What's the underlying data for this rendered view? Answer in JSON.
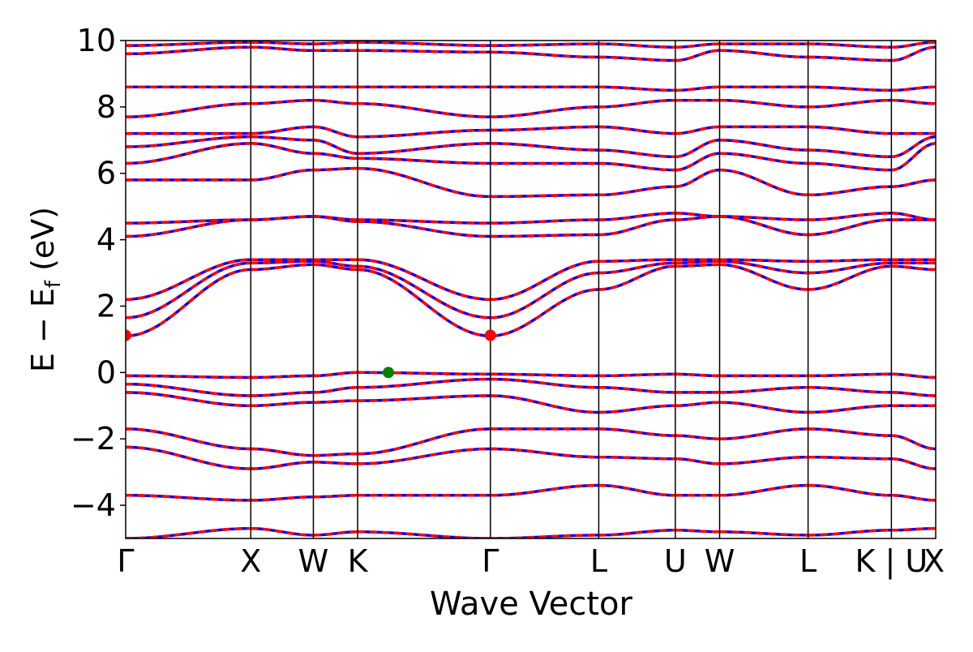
{
  "chart_data": {
    "type": "line",
    "xlabel": "Wave Vector",
    "ylabel": "E − E",
    "ylabel_subscript": "f",
    "ylabel_unit": " (eV)",
    "ylim": [
      -5,
      10
    ],
    "yticks": [
      -4,
      -2,
      0,
      2,
      4,
      6,
      8,
      10
    ],
    "ytick_labels": [
      "−4",
      "−2",
      "0",
      "2",
      "4",
      "6",
      "8",
      "10"
    ],
    "grid": false,
    "legend": "none",
    "kpath": [
      {
        "label": "Γ",
        "x": 0.0
      },
      {
        "label": "X",
        "x": 1.0
      },
      {
        "label": "W",
        "x": 1.5
      },
      {
        "label": "K",
        "x": 1.854
      },
      {
        "label": "Γ",
        "x": 2.915
      },
      {
        "label": "L",
        "x": 3.781
      },
      {
        "label": "U",
        "x": 4.393
      },
      {
        "label": "W",
        "x": 4.747
      },
      {
        "label": "L",
        "x": 5.454
      },
      {
        "label": "K | U",
        "x": 6.12
      },
      {
        "label": "X",
        "x": 6.474
      }
    ],
    "series_colors": {
      "spin_up": "#ff0000",
      "spin_down": "#0000ff"
    },
    "band_line_note": "red and blue bands overlap (dashed)",
    "segments": [
      {
        "x0": 0.0,
        "x1": 1.0,
        "bands": [
          [
            -5.0,
            -4.7
          ],
          [
            -3.7,
            -3.85
          ],
          [
            -2.25,
            -2.9
          ],
          [
            -1.7,
            -2.3
          ],
          [
            -0.6,
            -1.0
          ],
          [
            -0.35,
            -0.7
          ],
          [
            -0.1,
            -0.15
          ],
          [
            1.1,
            3.1
          ],
          [
            1.65,
            3.3
          ],
          [
            2.2,
            3.4
          ],
          [
            4.1,
            4.6
          ],
          [
            4.5,
            4.6
          ],
          [
            5.8,
            5.8
          ],
          [
            6.3,
            6.9
          ],
          [
            6.8,
            7.1
          ],
          [
            7.2,
            7.2
          ],
          [
            7.7,
            8.1
          ],
          [
            8.6,
            8.6
          ],
          [
            9.6,
            9.8
          ],
          [
            9.85,
            9.95
          ]
        ]
      },
      {
        "x0": 1.0,
        "x1": 1.5,
        "bands": [
          [
            -4.7,
            -4.9
          ],
          [
            -3.85,
            -3.75
          ],
          [
            -2.9,
            -2.7
          ],
          [
            -2.3,
            -2.5
          ],
          [
            -1.0,
            -0.9
          ],
          [
            -0.7,
            -0.6
          ],
          [
            -0.15,
            -0.1
          ],
          [
            3.1,
            3.25
          ],
          [
            3.3,
            3.35
          ],
          [
            3.4,
            3.4
          ],
          [
            4.6,
            4.7
          ],
          [
            4.6,
            4.7
          ],
          [
            5.8,
            6.1
          ],
          [
            6.9,
            6.6
          ],
          [
            7.1,
            7.0
          ],
          [
            7.2,
            7.4
          ],
          [
            8.1,
            8.2
          ],
          [
            8.6,
            8.6
          ],
          [
            9.8,
            9.7
          ],
          [
            9.95,
            9.9
          ]
        ]
      },
      {
        "x0": 1.5,
        "x1": 1.854,
        "bands": [
          [
            -4.9,
            -4.8
          ],
          [
            -3.75,
            -3.7
          ],
          [
            -2.7,
            -2.75
          ],
          [
            -2.5,
            -2.45
          ],
          [
            -0.9,
            -0.85
          ],
          [
            -0.6,
            -0.45
          ],
          [
            -0.1,
            0.0
          ],
          [
            3.25,
            3.1
          ],
          [
            3.35,
            3.2
          ],
          [
            3.4,
            3.4
          ],
          [
            4.7,
            4.55
          ],
          [
            4.7,
            4.6
          ],
          [
            6.1,
            6.15
          ],
          [
            6.6,
            6.45
          ],
          [
            7.0,
            6.6
          ],
          [
            7.4,
            7.1
          ],
          [
            8.2,
            8.1
          ],
          [
            8.6,
            8.6
          ],
          [
            9.7,
            9.7
          ],
          [
            9.9,
            9.95
          ]
        ]
      },
      {
        "x0": 1.854,
        "x1": 2.915,
        "bands": [
          [
            -4.8,
            -5.0
          ],
          [
            -3.7,
            -3.7
          ],
          [
            -2.75,
            -2.3
          ],
          [
            -2.45,
            -1.7
          ],
          [
            -0.85,
            -0.7
          ],
          [
            -0.45,
            -0.2
          ],
          [
            0.0,
            -0.05
          ],
          [
            3.1,
            1.1
          ],
          [
            3.2,
            1.65
          ],
          [
            3.4,
            2.2
          ],
          [
            4.55,
            4.1
          ],
          [
            4.6,
            4.5
          ],
          [
            6.15,
            5.3
          ],
          [
            6.45,
            6.3
          ],
          [
            6.6,
            6.9
          ],
          [
            7.1,
            7.3
          ],
          [
            8.1,
            7.7
          ],
          [
            8.6,
            8.6
          ],
          [
            9.7,
            9.65
          ],
          [
            9.95,
            9.85
          ]
        ]
      },
      {
        "x0": 2.915,
        "x1": 3.781,
        "bands": [
          [
            -5.0,
            -4.9
          ],
          [
            -3.7,
            -3.4
          ],
          [
            -2.3,
            -2.55
          ],
          [
            -1.7,
            -1.7
          ],
          [
            -0.7,
            -1.2
          ],
          [
            -0.2,
            -0.45
          ],
          [
            -0.05,
            -0.1
          ],
          [
            1.1,
            2.5
          ],
          [
            1.65,
            3.0
          ],
          [
            2.2,
            3.35
          ],
          [
            4.1,
            4.15
          ],
          [
            4.5,
            4.6
          ],
          [
            5.3,
            5.35
          ],
          [
            6.3,
            6.3
          ],
          [
            6.9,
            6.7
          ],
          [
            7.3,
            7.4
          ],
          [
            7.7,
            8.0
          ],
          [
            8.6,
            8.6
          ],
          [
            9.65,
            9.5
          ],
          [
            9.85,
            9.9
          ]
        ]
      },
      {
        "x0": 3.781,
        "x1": 4.393,
        "bands": [
          [
            -4.9,
            -4.75
          ],
          [
            -3.4,
            -3.7
          ],
          [
            -2.55,
            -2.6
          ],
          [
            -1.7,
            -1.9
          ],
          [
            -1.2,
            -1.0
          ],
          [
            -0.45,
            -0.6
          ],
          [
            -0.1,
            -0.05
          ],
          [
            2.5,
            3.2
          ],
          [
            3.0,
            3.3
          ],
          [
            3.35,
            3.4
          ],
          [
            4.15,
            4.6
          ],
          [
            4.6,
            4.8
          ],
          [
            5.35,
            5.6
          ],
          [
            6.3,
            6.1
          ],
          [
            6.7,
            6.5
          ],
          [
            7.4,
            7.2
          ],
          [
            8.0,
            8.2
          ],
          [
            8.6,
            8.5
          ],
          [
            9.5,
            9.4
          ],
          [
            9.9,
            9.8
          ]
        ]
      },
      {
        "x0": 4.393,
        "x1": 4.747,
        "bands": [
          [
            -4.75,
            -4.8
          ],
          [
            -3.7,
            -3.7
          ],
          [
            -2.6,
            -2.75
          ],
          [
            -1.9,
            -2.0
          ],
          [
            -1.0,
            -0.9
          ],
          [
            -0.6,
            -0.6
          ],
          [
            -0.05,
            -0.1
          ],
          [
            3.2,
            3.25
          ],
          [
            3.3,
            3.35
          ],
          [
            3.4,
            3.4
          ],
          [
            4.6,
            4.7
          ],
          [
            4.8,
            4.7
          ],
          [
            5.6,
            6.1
          ],
          [
            6.1,
            6.6
          ],
          [
            6.5,
            7.0
          ],
          [
            7.2,
            7.4
          ],
          [
            8.2,
            8.2
          ],
          [
            8.5,
            8.6
          ],
          [
            9.4,
            9.7
          ],
          [
            9.8,
            9.9
          ]
        ]
      },
      {
        "x0": 4.747,
        "x1": 5.454,
        "bands": [
          [
            -4.8,
            -4.9
          ],
          [
            -3.7,
            -3.4
          ],
          [
            -2.75,
            -2.55
          ],
          [
            -2.0,
            -1.7
          ],
          [
            -0.9,
            -1.2
          ],
          [
            -0.6,
            -0.45
          ],
          [
            -0.1,
            -0.1
          ],
          [
            3.25,
            2.5
          ],
          [
            3.35,
            3.0
          ],
          [
            3.4,
            3.35
          ],
          [
            4.7,
            4.15
          ],
          [
            4.7,
            4.6
          ],
          [
            6.1,
            5.35
          ],
          [
            6.6,
            6.3
          ],
          [
            7.0,
            6.7
          ],
          [
            7.4,
            7.4
          ],
          [
            8.2,
            8.0
          ],
          [
            8.6,
            8.6
          ],
          [
            9.7,
            9.5
          ],
          [
            9.9,
            9.9
          ]
        ]
      },
      {
        "x0": 5.454,
        "x1": 6.12,
        "bands": [
          [
            -4.9,
            -4.75
          ],
          [
            -3.4,
            -3.7
          ],
          [
            -2.55,
            -2.6
          ],
          [
            -1.7,
            -1.9
          ],
          [
            -1.2,
            -1.0
          ],
          [
            -0.45,
            -0.6
          ],
          [
            -0.1,
            -0.05
          ],
          [
            2.5,
            3.2
          ],
          [
            3.0,
            3.3
          ],
          [
            3.35,
            3.4
          ],
          [
            4.15,
            4.6
          ],
          [
            4.6,
            4.8
          ],
          [
            5.35,
            5.6
          ],
          [
            6.3,
            6.1
          ],
          [
            6.7,
            6.5
          ],
          [
            7.4,
            7.2
          ],
          [
            8.0,
            8.2
          ],
          [
            8.6,
            8.5
          ],
          [
            9.5,
            9.4
          ],
          [
            9.9,
            9.8
          ]
        ]
      },
      {
        "x0": 6.12,
        "x1": 6.474,
        "bands": [
          [
            -4.75,
            -4.7
          ],
          [
            -3.7,
            -3.85
          ],
          [
            -2.6,
            -2.9
          ],
          [
            -1.9,
            -2.3
          ],
          [
            -1.0,
            -1.0
          ],
          [
            -0.6,
            -0.7
          ],
          [
            -0.05,
            -0.15
          ],
          [
            3.2,
            3.1
          ],
          [
            3.3,
            3.3
          ],
          [
            3.4,
            3.4
          ],
          [
            4.6,
            4.6
          ],
          [
            4.8,
            4.6
          ],
          [
            5.6,
            5.8
          ],
          [
            6.1,
            6.9
          ],
          [
            6.5,
            7.1
          ],
          [
            7.2,
            7.2
          ],
          [
            8.2,
            8.1
          ],
          [
            8.5,
            8.6
          ],
          [
            9.4,
            9.8
          ],
          [
            9.8,
            9.95
          ]
        ]
      }
    ],
    "markers": [
      {
        "label": "CBM",
        "x": 0.0,
        "y": 1.12,
        "color": "#ff0000"
      },
      {
        "label": "CBM",
        "x": 2.915,
        "y": 1.12,
        "color": "#ff0000"
      },
      {
        "label": "VBM",
        "x": 2.1,
        "y": 0.0,
        "color": "#008000"
      }
    ]
  }
}
